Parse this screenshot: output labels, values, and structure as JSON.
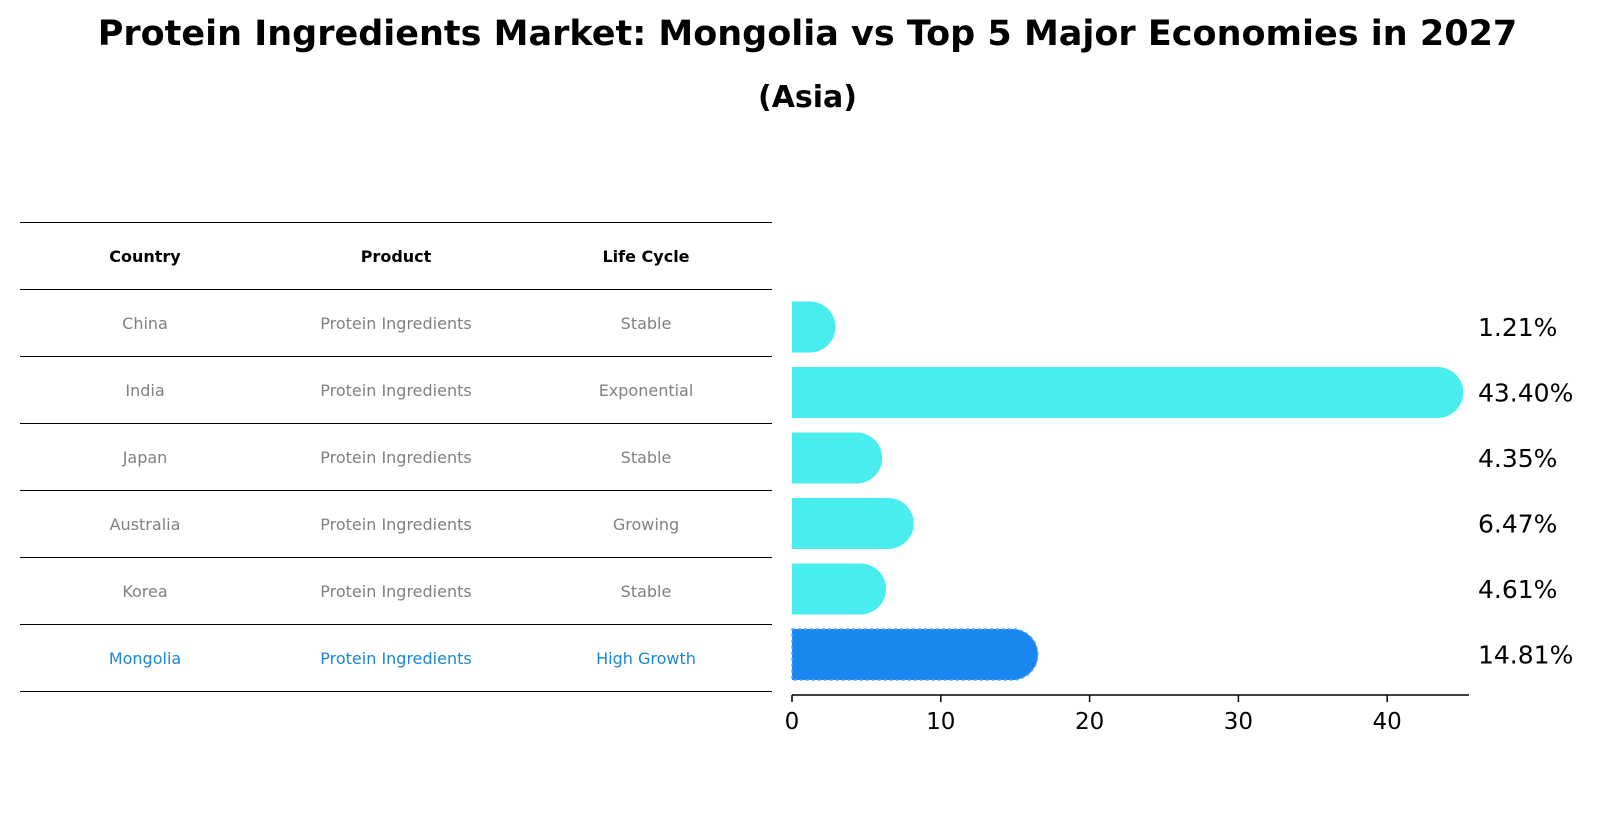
{
  "title": "Protein Ingredients Market: Mongolia vs Top 5 Major Economies in 2027",
  "subtitle": "(Asia)",
  "table": {
    "headers": [
      "Country",
      "Product",
      "Life Cycle"
    ],
    "rows": [
      [
        "China",
        "Protein Ingredients",
        "Stable"
      ],
      [
        "India",
        "Protein Ingredients",
        "Exponential"
      ],
      [
        "Japan",
        "Protein Ingredients",
        "Stable"
      ],
      [
        "Australia",
        "Protein Ingredients",
        "Growing"
      ],
      [
        "Korea",
        "Protein Ingredients",
        "Stable"
      ],
      [
        "Mongolia",
        "Protein Ingredients",
        "High Growth"
      ]
    ]
  },
  "colors": {
    "bar": "#4aeded",
    "highlight_bar": "#1a86f0",
    "highlight_text": "#1a86d4",
    "muted_text": "#808080"
  },
  "chart_data": {
    "type": "bar",
    "orientation": "horizontal",
    "categories": [
      "China",
      "India",
      "Japan",
      "Australia",
      "Korea",
      "Mongolia"
    ],
    "values": [
      1.21,
      43.4,
      4.35,
      6.47,
      4.61,
      14.81
    ],
    "value_labels": [
      "1.21%",
      "43.40%",
      "4.35%",
      "6.47%",
      "4.61%",
      "14.81%"
    ],
    "highlight_index": 5,
    "xlim": [
      0,
      45.5
    ],
    "xticks": [
      0,
      10,
      20,
      30,
      40
    ],
    "xtick_labels": [
      "0",
      "10",
      "20",
      "30",
      "40"
    ],
    "title": "",
    "xlabel": "",
    "ylabel": "",
    "grid": false
  }
}
